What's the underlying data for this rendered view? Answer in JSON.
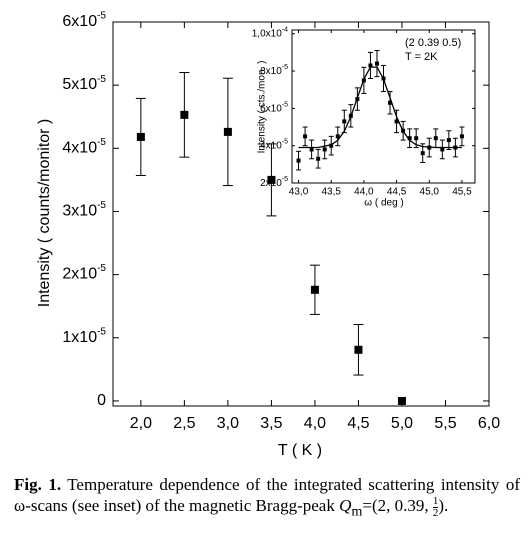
{
  "chart_data": [
    {
      "type": "scatter",
      "xlabel": "T ( K )",
      "ylabel": "Intensity ( counts/monitor )",
      "x": [
        2.0,
        2.5,
        3.0,
        3.5,
        4.0,
        4.5,
        5.0
      ],
      "values": [
        4.18e-05,
        4.53e-05,
        4.26e-05,
        3.5e-05,
        1.76e-05,
        8.1e-06,
        0
      ],
      "errors": [
        6.1e-06,
        6.7e-06,
        8.5e-06,
        5.7e-06,
        3.9e-06,
        4e-06,
        null
      ],
      "color": "#000000",
      "xlim": [
        1.68,
        6.0
      ],
      "ylim": [
        -8e-07,
        6e-05
      ],
      "xticks": [
        {
          "value": 2.0,
          "label": "2,0"
        },
        {
          "value": 2.5,
          "label": "2,5"
        },
        {
          "value": 3.0,
          "label": "3,0"
        },
        {
          "value": 3.5,
          "label": "3,5"
        },
        {
          "value": 4.0,
          "label": "4,0"
        },
        {
          "value": 4.5,
          "label": "4,5"
        },
        {
          "value": 5.0,
          "label": "5,0"
        },
        {
          "value": 5.5,
          "label": "5,5"
        },
        {
          "value": 6.0,
          "label": "6,0"
        }
      ],
      "yticks": [
        0,
        {
          "value": 1e-05,
          "label": "1x10",
          "sup": "-5"
        },
        {
          "value": 2e-05,
          "label": "2x10",
          "sup": "-5"
        },
        {
          "value": 3e-05,
          "label": "3x10",
          "sup": "-5"
        },
        {
          "value": 4e-05,
          "label": "4x10",
          "sup": "-5"
        },
        {
          "value": 5e-05,
          "label": "5x10",
          "sup": "-5"
        },
        {
          "value": 6e-05,
          "label": "6x10",
          "sup": "-5"
        }
      ]
    },
    {
      "type": "scatter",
      "xlabel": "ω ( deg )",
      "ylabel": "Intensity ( cts./mon. )",
      "annotations": [
        "(2 0.39 0.5)",
        "T = 2K"
      ],
      "x": [
        43.0,
        43.1,
        43.2,
        43.3,
        43.4,
        43.5,
        43.6,
        43.7,
        43.8,
        43.9,
        44.0,
        44.1,
        44.2,
        44.3,
        44.4,
        44.5,
        44.6,
        44.7,
        44.8,
        44.9,
        45.0,
        45.1,
        45.2,
        45.3,
        45.4,
        45.5
      ],
      "values": [
        3.2e-05,
        4.5e-05,
        3.8e-05,
        3.3e-05,
        3.8e-05,
        4e-05,
        4.5e-05,
        5.3e-05,
        5.6e-05,
        6.5e-05,
        7.5e-05,
        8.3e-05,
        8.4e-05,
        7.6e-05,
        6.3e-05,
        5.3e-05,
        4.8e-05,
        4.4e-05,
        4.4e-05,
        3.6e-05,
        3.9e-05,
        4.4e-05,
        3.8e-05,
        4.3e-05,
        3.9e-05,
        4.5e-05
      ],
      "errors": [
        5e-06,
        5e-06,
        5e-06,
        5e-06,
        5e-06,
        5e-06,
        5e-06,
        6e-06,
        6e-06,
        6e-06,
        7e-06,
        7e-06,
        7e-06,
        7e-06,
        6e-06,
        6e-06,
        5e-06,
        5e-06,
        5e-06,
        5e-06,
        5e-06,
        5e-06,
        5e-06,
        5e-06,
        5e-06,
        5e-06
      ],
      "fit": {
        "x": [
          43.0,
          43.3,
          43.5,
          43.6,
          43.7,
          43.8,
          43.9,
          44.0,
          44.1,
          44.2,
          44.3,
          44.4,
          44.5,
          44.6,
          44.7,
          44.8,
          44.9,
          45.1,
          45.5
        ],
        "values": [
          3.9e-05,
          3.9e-05,
          4.05e-05,
          4.29e-05,
          4.77e-05,
          5.55e-05,
          6.57e-05,
          7.57e-05,
          8.21e-05,
          8.21e-05,
          7.57e-05,
          6.57e-05,
          5.55e-05,
          4.77e-05,
          4.29e-05,
          4.05e-05,
          3.95e-05,
          3.9e-05,
          3.9e-05
        ]
      },
      "color": "#000000",
      "xlim": [
        42.9,
        45.7
      ],
      "ylim": [
        2e-05,
        0.000102
      ],
      "xticks": [
        {
          "value": 43.0,
          "label": "43,0"
        },
        {
          "value": 43.5,
          "label": "43,5"
        },
        {
          "value": 44.0,
          "label": "44,0"
        },
        {
          "value": 44.5,
          "label": "44,5"
        },
        {
          "value": 45.0,
          "label": "45,0"
        },
        {
          "value": 45.5,
          "label": "45,5"
        }
      ],
      "yticks": [
        {
          "value": 2e-05,
          "label": "2x10",
          "sup": "-5"
        },
        {
          "value": 4e-05,
          "label": "4x10",
          "sup": "-5"
        },
        {
          "value": 6e-05,
          "label": "6x10",
          "sup": "-5"
        },
        {
          "value": 8e-05,
          "label": "8x10",
          "sup": "-5"
        },
        {
          "value": 0.0001,
          "label": "1,0x10",
          "sup": "-4"
        }
      ]
    }
  ],
  "caption": {
    "label": "Fig. 1.",
    "text": "Temperature dependence of the integrated scattering intensity of ω-scans (see inset) of the magnetic Bragg-peak",
    "formula": [
      "Q",
      "m",
      "=(2, 0.39, ",
      "1",
      "2",
      ")."
    ]
  }
}
